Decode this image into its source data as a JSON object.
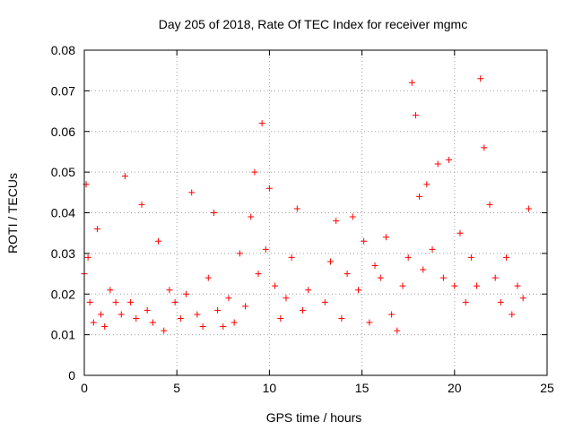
{
  "chart_data": {
    "type": "scatter",
    "title": "Day 205 of 2018, Rate Of TEC Index for receiver mgmc",
    "xlabel": "GPS time / hours",
    "ylabel": "ROTI / TECUs",
    "xlim": [
      0,
      25
    ],
    "ylim": [
      0,
      0.08
    ],
    "xticks": [
      "0",
      "5",
      "10",
      "15",
      "20",
      "25"
    ],
    "yticks": [
      "0",
      "0.01",
      "0.02",
      "0.03",
      "0.04",
      "0.05",
      "0.06",
      "0.07",
      "0.08"
    ],
    "grid": true,
    "marker": "+",
    "marker_color": "#ff0000",
    "series": [
      {
        "x": [
          0.0,
          0.1,
          0.2,
          0.3,
          0.5,
          0.7,
          0.9,
          1.1,
          1.4,
          1.7,
          2.0,
          2.2,
          2.5,
          2.8,
          3.1,
          3.4,
          3.7,
          4.0,
          4.3,
          4.6,
          4.9,
          5.2,
          5.5,
          5.8,
          6.1,
          6.4,
          6.7,
          7.0,
          7.2,
          7.5,
          7.8,
          8.1,
          8.4,
          8.7,
          9.0,
          9.2,
          9.4,
          9.6,
          9.8,
          10.0,
          10.3,
          10.6,
          10.9,
          11.2,
          11.5,
          11.8,
          12.1,
          13.0,
          13.3,
          13.6,
          13.9,
          14.2,
          14.5,
          14.8,
          15.1,
          15.4,
          15.7,
          16.0,
          16.3,
          16.6,
          16.9,
          17.2,
          17.5,
          17.7,
          17.9,
          18.1,
          18.3,
          18.5,
          18.8,
          19.1,
          19.4,
          19.7,
          20.0,
          20.3,
          20.6,
          20.9,
          21.2,
          21.4,
          21.6,
          21.9,
          22.2,
          22.5,
          22.8,
          23.1,
          23.4,
          23.7,
          24.0
        ],
        "y": [
          0.025,
          0.047,
          0.029,
          0.018,
          0.013,
          0.036,
          0.015,
          0.012,
          0.021,
          0.018,
          0.015,
          0.049,
          0.018,
          0.014,
          0.042,
          0.016,
          0.013,
          0.033,
          0.011,
          0.021,
          0.018,
          0.014,
          0.02,
          0.045,
          0.015,
          0.012,
          0.024,
          0.04,
          0.016,
          0.012,
          0.019,
          0.013,
          0.03,
          0.017,
          0.039,
          0.05,
          0.025,
          0.062,
          0.031,
          0.046,
          0.022,
          0.014,
          0.019,
          0.029,
          0.041,
          0.016,
          0.021,
          0.018,
          0.028,
          0.038,
          0.014,
          0.025,
          0.039,
          0.021,
          0.033,
          0.013,
          0.027,
          0.024,
          0.034,
          0.015,
          0.011,
          0.022,
          0.029,
          0.072,
          0.064,
          0.044,
          0.026,
          0.047,
          0.031,
          0.052,
          0.024,
          0.053,
          0.022,
          0.035,
          0.018,
          0.029,
          0.022,
          0.073,
          0.056,
          0.042,
          0.024,
          0.018,
          0.029,
          0.015,
          0.022,
          0.019,
          0.041
        ]
      }
    ]
  }
}
